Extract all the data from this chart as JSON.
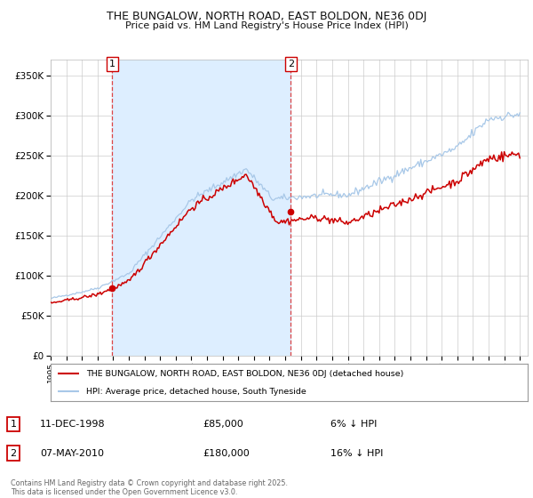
{
  "title1": "THE BUNGALOW, NORTH ROAD, EAST BOLDON, NE36 0DJ",
  "title2": "Price paid vs. HM Land Registry's House Price Index (HPI)",
  "legend_line1": "THE BUNGALOW, NORTH ROAD, EAST BOLDON, NE36 0DJ (detached house)",
  "legend_line2": "HPI: Average price, detached house, South Tyneside",
  "sale1_date": "11-DEC-1998",
  "sale1_price": "£85,000",
  "sale1_hpi": "6% ↓ HPI",
  "sale2_date": "07-MAY-2010",
  "sale2_price": "£180,000",
  "sale2_hpi": "16% ↓ HPI",
  "footnote": "Contains HM Land Registry data © Crown copyright and database right 2025.\nThis data is licensed under the Open Government Licence v3.0.",
  "hpi_color": "#a8c8e8",
  "price_color": "#cc0000",
  "shade_color": "#ddeeff",
  "vline_color": "#dd4444",
  "bg_color": "#ffffff",
  "grid_color": "#cccccc",
  "ylim": [
    0,
    370000
  ],
  "yticks": [
    0,
    50000,
    100000,
    150000,
    200000,
    250000,
    300000,
    350000
  ],
  "sale1_x": 1998.94,
  "sale1_y": 85000,
  "sale2_x": 2010.36,
  "sale2_y": 180000,
  "xmin": 1995,
  "xmax": 2025.5
}
